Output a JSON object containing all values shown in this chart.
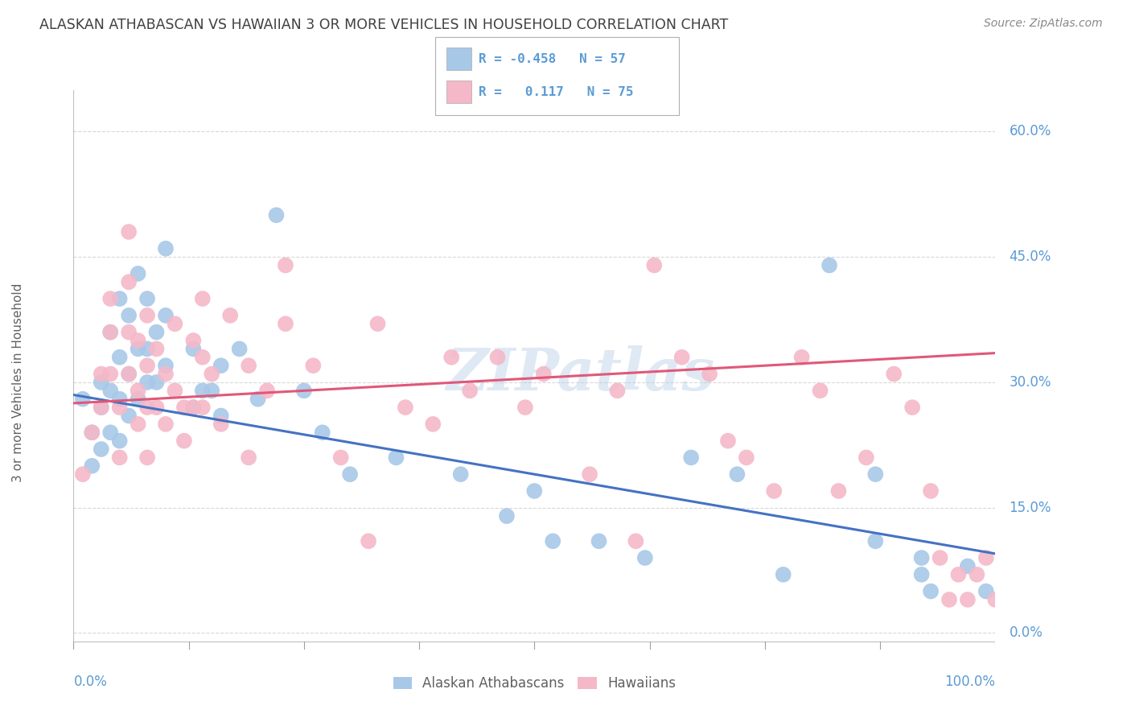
{
  "title": "ALASKAN ATHABASCAN VS HAWAIIAN 3 OR MORE VEHICLES IN HOUSEHOLD CORRELATION CHART",
  "source": "Source: ZipAtlas.com",
  "ylabel": "3 or more Vehicles in Household",
  "xlim": [
    0,
    100
  ],
  "ylim": [
    -2,
    65
  ],
  "yticks": [
    0,
    15,
    30,
    45,
    60
  ],
  "ytick_labels": [
    "0.0%",
    "15.0%",
    "30.0%",
    "45.0%",
    "60.0%"
  ],
  "legend_labels": [
    "Alaskan Athabascans",
    "Hawaiians"
  ],
  "blue_R": "-0.458",
  "blue_N": "57",
  "pink_R": "0.117",
  "pink_N": "75",
  "blue_color": "#a8c8e8",
  "pink_color": "#f4b8c8",
  "blue_line_color": "#4472c4",
  "pink_line_color": "#e05878",
  "watermark": "ZIPatlas",
  "background_color": "#ffffff",
  "grid_color": "#d8d8d8",
  "title_color": "#404040",
  "axis_label_color": "#5b9bd5",
  "text_color": "#606060",
  "blue_scatter": [
    [
      1,
      28
    ],
    [
      2,
      24
    ],
    [
      2,
      20
    ],
    [
      3,
      30
    ],
    [
      3,
      27
    ],
    [
      3,
      22
    ],
    [
      4,
      36
    ],
    [
      4,
      29
    ],
    [
      4,
      24
    ],
    [
      5,
      40
    ],
    [
      5,
      33
    ],
    [
      5,
      28
    ],
    [
      5,
      23
    ],
    [
      6,
      38
    ],
    [
      6,
      31
    ],
    [
      6,
      26
    ],
    [
      7,
      43
    ],
    [
      7,
      34
    ],
    [
      7,
      28
    ],
    [
      8,
      40
    ],
    [
      8,
      34
    ],
    [
      8,
      30
    ],
    [
      9,
      36
    ],
    [
      9,
      30
    ],
    [
      10,
      46
    ],
    [
      10,
      38
    ],
    [
      10,
      32
    ],
    [
      13,
      34
    ],
    [
      13,
      27
    ],
    [
      14,
      29
    ],
    [
      15,
      29
    ],
    [
      16,
      32
    ],
    [
      16,
      26
    ],
    [
      18,
      34
    ],
    [
      20,
      28
    ],
    [
      22,
      50
    ],
    [
      25,
      29
    ],
    [
      27,
      24
    ],
    [
      30,
      19
    ],
    [
      35,
      21
    ],
    [
      42,
      19
    ],
    [
      47,
      14
    ],
    [
      50,
      17
    ],
    [
      52,
      11
    ],
    [
      57,
      11
    ],
    [
      62,
      9
    ],
    [
      67,
      21
    ],
    [
      72,
      19
    ],
    [
      77,
      7
    ],
    [
      82,
      44
    ],
    [
      87,
      19
    ],
    [
      87,
      11
    ],
    [
      92,
      9
    ],
    [
      92,
      7
    ],
    [
      93,
      5
    ],
    [
      97,
      8
    ],
    [
      99,
      5
    ]
  ],
  "pink_scatter": [
    [
      1,
      19
    ],
    [
      2,
      24
    ],
    [
      3,
      31
    ],
    [
      3,
      27
    ],
    [
      4,
      40
    ],
    [
      4,
      36
    ],
    [
      4,
      31
    ],
    [
      5,
      27
    ],
    [
      5,
      21
    ],
    [
      6,
      48
    ],
    [
      6,
      42
    ],
    [
      6,
      36
    ],
    [
      6,
      31
    ],
    [
      7,
      35
    ],
    [
      7,
      29
    ],
    [
      7,
      25
    ],
    [
      8,
      38
    ],
    [
      8,
      32
    ],
    [
      8,
      27
    ],
    [
      8,
      21
    ],
    [
      9,
      34
    ],
    [
      9,
      27
    ],
    [
      10,
      31
    ],
    [
      10,
      25
    ],
    [
      11,
      37
    ],
    [
      11,
      29
    ],
    [
      12,
      27
    ],
    [
      12,
      23
    ],
    [
      13,
      35
    ],
    [
      13,
      27
    ],
    [
      14,
      40
    ],
    [
      14,
      33
    ],
    [
      14,
      27
    ],
    [
      15,
      31
    ],
    [
      16,
      25
    ],
    [
      17,
      38
    ],
    [
      19,
      32
    ],
    [
      19,
      21
    ],
    [
      21,
      29
    ],
    [
      23,
      44
    ],
    [
      23,
      37
    ],
    [
      26,
      32
    ],
    [
      29,
      21
    ],
    [
      32,
      11
    ],
    [
      33,
      37
    ],
    [
      36,
      27
    ],
    [
      39,
      25
    ],
    [
      41,
      33
    ],
    [
      43,
      29
    ],
    [
      46,
      33
    ],
    [
      49,
      27
    ],
    [
      51,
      31
    ],
    [
      56,
      19
    ],
    [
      59,
      29
    ],
    [
      61,
      11
    ],
    [
      63,
      44
    ],
    [
      66,
      33
    ],
    [
      69,
      31
    ],
    [
      71,
      23
    ],
    [
      73,
      21
    ],
    [
      76,
      17
    ],
    [
      79,
      33
    ],
    [
      81,
      29
    ],
    [
      83,
      17
    ],
    [
      86,
      21
    ],
    [
      89,
      31
    ],
    [
      91,
      27
    ],
    [
      93,
      17
    ],
    [
      94,
      9
    ],
    [
      95,
      4
    ],
    [
      96,
      7
    ],
    [
      97,
      4
    ],
    [
      98,
      7
    ],
    [
      99,
      9
    ],
    [
      100,
      4
    ]
  ],
  "blue_line_x": [
    0,
    100
  ],
  "blue_line_y": [
    28.5,
    9.5
  ],
  "pink_line_x": [
    0,
    100
  ],
  "pink_line_y": [
    27.5,
    33.5
  ]
}
